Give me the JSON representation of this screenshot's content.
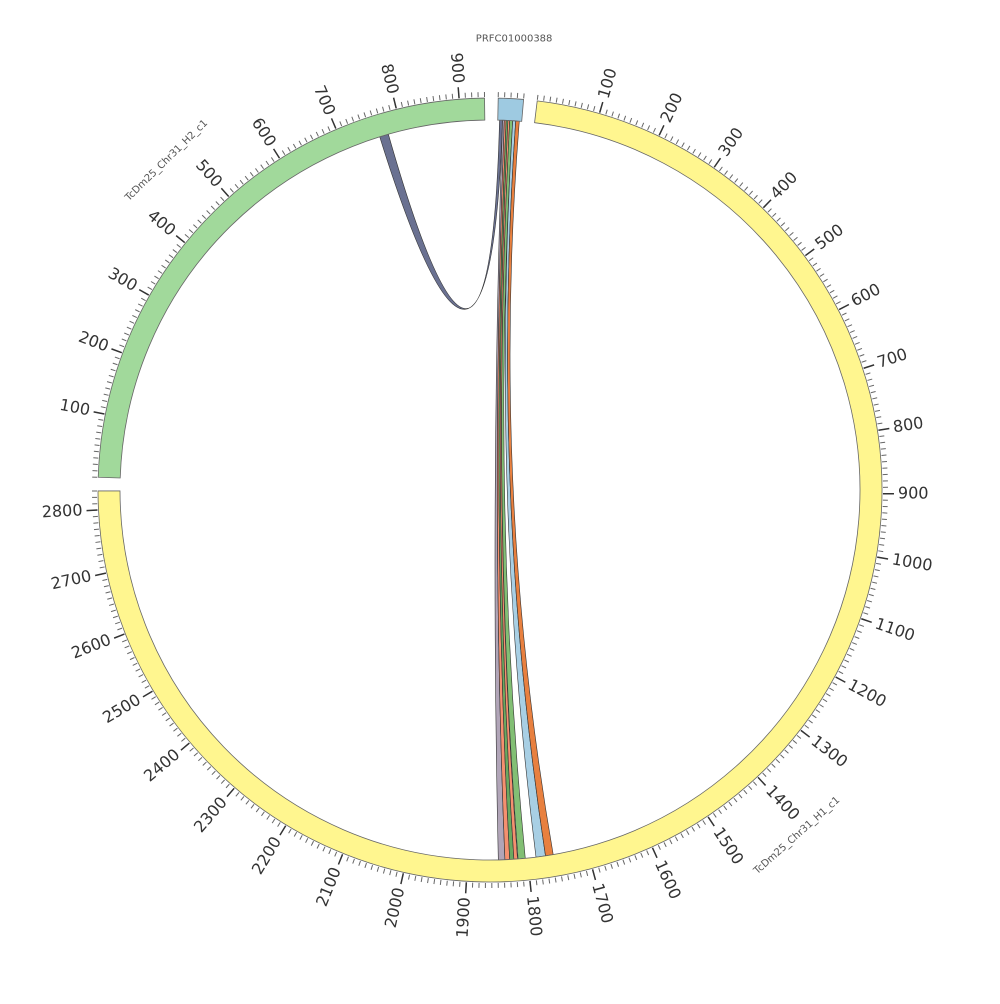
{
  "chart_data": {
    "type": "chord",
    "segments": [
      {
        "name": "PRFC01000388",
        "length": 40,
        "color": "#9ecae1"
      },
      {
        "name": "TcDm25_Chr31_H1_c1",
        "length": 2830,
        "color": "#fff68f",
        "ticks": [
          100,
          200,
          300,
          400,
          500,
          600,
          700,
          800,
          900,
          1000,
          1100,
          1200,
          1300,
          1400,
          1500,
          1600,
          1700,
          1800,
          1900,
          2000,
          2100,
          2200,
          2300,
          2400,
          2500,
          2600,
          2700,
          2800
        ]
      },
      {
        "name": "TcDm25_Chr31_H2_c1",
        "length": 940,
        "color": "#a1d99b",
        "ticks": [
          100,
          200,
          300,
          400,
          500,
          600,
          700,
          800,
          900
        ]
      }
    ],
    "minor_tick_interval": 10,
    "links": [
      {
        "source": {
          "segment": 0,
          "start": 3,
          "end": 8
        },
        "target": {
          "segment": 2,
          "start": 762,
          "end": 777
        },
        "color": "#5a6285"
      },
      {
        "source": {
          "segment": 0,
          "start": 8,
          "end": 11
        },
        "target": {
          "segment": 1,
          "start": 1838,
          "end": 1849
        },
        "color": "#a89bb0"
      },
      {
        "source": {
          "segment": 0,
          "start": 11,
          "end": 14
        },
        "target": {
          "segment": 1,
          "start": 1830,
          "end": 1838
        },
        "color": "#f4845f"
      },
      {
        "source": {
          "segment": 0,
          "start": 14,
          "end": 17
        },
        "target": {
          "segment": 1,
          "start": 1823,
          "end": 1830
        },
        "color": "#5aa04f"
      },
      {
        "source": {
          "segment": 0,
          "start": 17,
          "end": 20
        },
        "target": {
          "segment": 1,
          "start": 1817,
          "end": 1823
        },
        "color": "#f4845f"
      },
      {
        "source": {
          "segment": 0,
          "start": 20,
          "end": 25
        },
        "target": {
          "segment": 1,
          "start": 1804,
          "end": 1816
        },
        "color": "#74b865"
      },
      {
        "source": {
          "segment": 0,
          "start": 25,
          "end": 30
        },
        "target": {
          "segment": 1,
          "start": 1770,
          "end": 1786
        },
        "color": "#9ecae1"
      },
      {
        "source": {
          "segment": 0,
          "start": 30,
          "end": 36
        },
        "target": {
          "segment": 1,
          "start": 1757,
          "end": 1770
        },
        "color": "#e6722a"
      }
    ]
  }
}
